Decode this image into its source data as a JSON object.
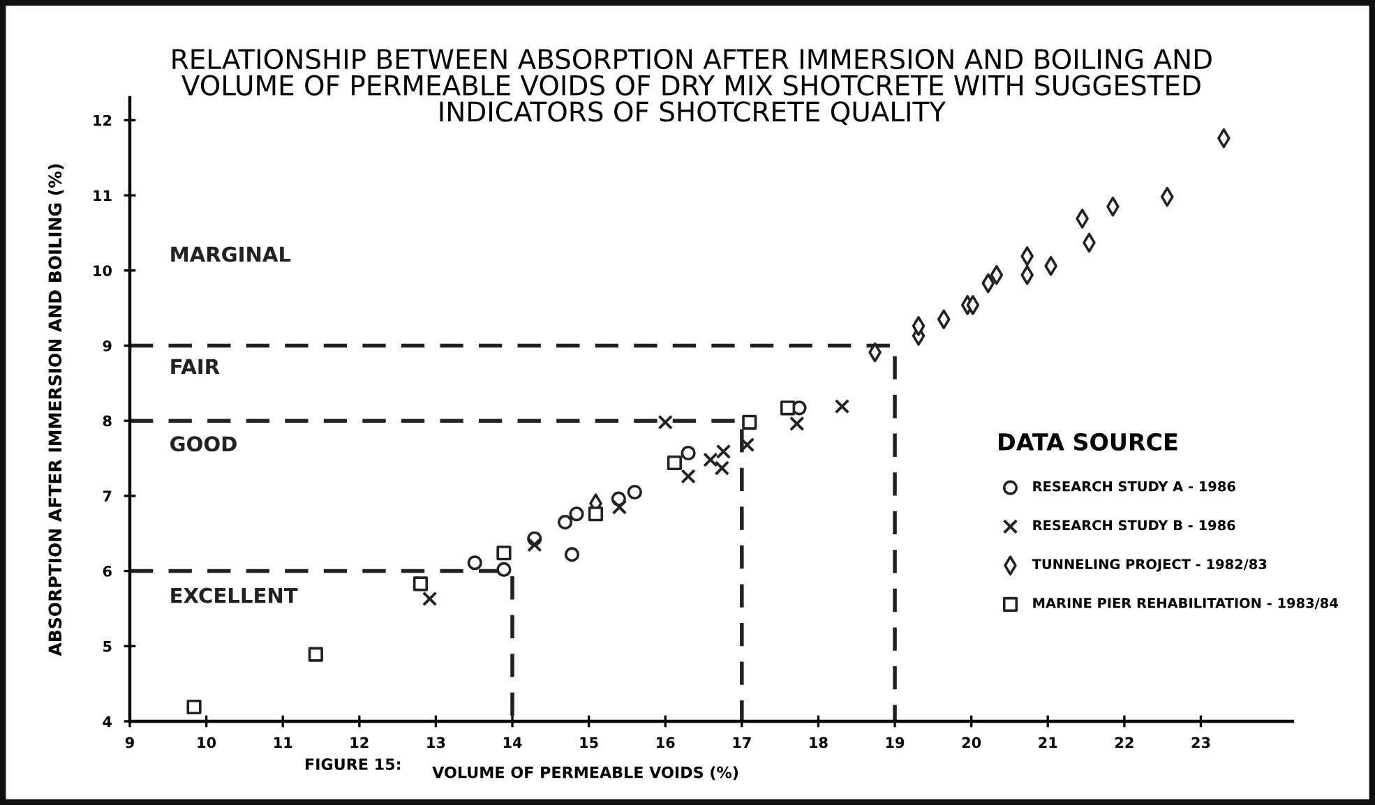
{
  "chart_data": {
    "type": "scatter",
    "title": "RELATIONSHIP BETWEEN ABSORPTION AFTER IMMERSION AND BOILING AND\nVOLUME OF PERMEABLE VOIDS OF DRY MIX SHOTCRETE WITH SUGGESTED\nINDICATORS OF SHOTCRETE QUALITY",
    "xlabel": "VOLUME OF PERMEABLE VOIDS (%)",
    "ylabel": "ABSORPTION AFTER IMMERSION AND BOILING (%)",
    "legend_title": "DATA SOURCE",
    "legend": "right",
    "xlim": [
      9,
      24.2
    ],
    "ylim": [
      4,
      12.3
    ],
    "xticks": [
      9,
      10,
      11,
      12,
      13,
      14,
      15,
      16,
      17,
      18,
      19,
      20,
      21,
      22,
      23
    ],
    "yticks": [
      4,
      5,
      6,
      7,
      8,
      9,
      10,
      11,
      12
    ],
    "grid": false,
    "annotations": [
      "MARGINAL",
      "FAIR",
      "GOOD",
      "EXCELLENT",
      "FIGURE 15:"
    ],
    "series": [
      {
        "name": "RESEARCH STUDY A - 1986",
        "color": "#222222",
        "marker": "circle",
        "x": [
          13.51,
          13.89,
          14.29,
          14.78,
          14.69,
          14.84,
          15.39,
          15.6,
          16.3,
          17.75
        ],
        "values": [
          6.11,
          6.02,
          6.43,
          6.22,
          6.65,
          6.76,
          6.96,
          7.05,
          7.57,
          8.17
        ]
      },
      {
        "name": "RESEARCH STUDY B - 1986",
        "color": "#222222",
        "marker": "cross",
        "x": [
          12.92,
          14.29,
          15.4,
          16.0,
          16.3,
          16.59,
          16.76,
          16.74,
          17.07,
          17.72,
          18.31
        ],
        "values": [
          5.63,
          6.35,
          6.85,
          7.98,
          7.26,
          7.48,
          7.59,
          7.37,
          7.68,
          7.96,
          8.19
        ]
      },
      {
        "name": "TUNNELING PROJECT - 1982/83",
        "color": "#222222",
        "marker": "diamond",
        "x": [
          15.09,
          18.74,
          19.31,
          19.31,
          19.64,
          19.95,
          20.02,
          20.22,
          20.33,
          20.73,
          20.73,
          21.04,
          21.45,
          21.54,
          21.85,
          22.56,
          23.3
        ],
        "values": [
          6.9,
          8.91,
          9.13,
          9.26,
          9.35,
          9.54,
          9.54,
          9.83,
          9.94,
          9.94,
          10.19,
          10.06,
          10.69,
          10.37,
          10.85,
          10.98,
          11.76
        ]
      },
      {
        "name": "MARINE PIER REHABILITATION - 1983/84",
        "color": "#222222",
        "marker": "square",
        "x": [
          9.84,
          11.43,
          12.8,
          13.89,
          15.09,
          16.12,
          17.1,
          17.6
        ],
        "values": [
          4.19,
          4.89,
          5.83,
          6.24,
          6.76,
          7.44,
          7.98,
          8.17
        ]
      },
      {
        "type": "line",
        "color": "#222222",
        "line_style": "dashed",
        "x": [
          9,
          14,
          14
        ],
        "values": [
          6,
          6,
          4
        ]
      },
      {
        "type": "line",
        "color": "#222222",
        "line_style": "dashed",
        "x": [
          9,
          17,
          17
        ],
        "values": [
          8,
          8,
          4
        ]
      },
      {
        "type": "line",
        "color": "#222222",
        "line_style": "dashed",
        "x": [
          9,
          19,
          19
        ],
        "values": [
          9,
          9,
          4
        ]
      }
    ]
  }
}
